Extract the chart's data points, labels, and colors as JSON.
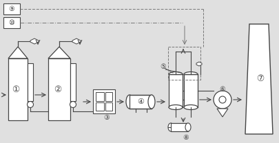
{
  "bg_color": "#e0e0e0",
  "line_color": "#444444",
  "dash_color": "#777777",
  "figsize": [
    4.06,
    2.08
  ],
  "dpi": 100
}
